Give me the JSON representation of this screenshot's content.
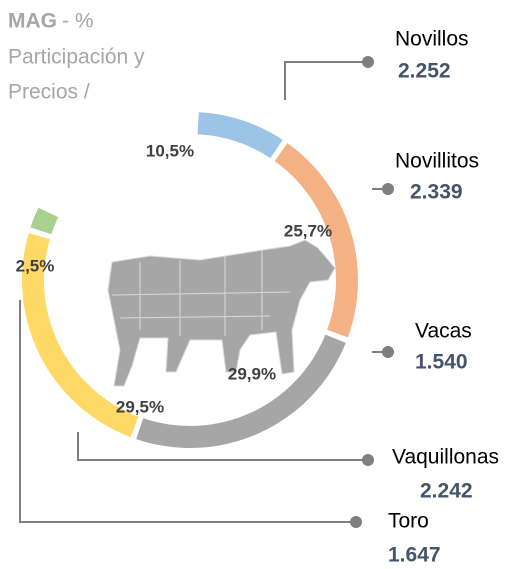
{
  "chart_data": {
    "type": "donut",
    "title": "MAG",
    "subtitle": [
      "- %",
      "Participación y",
      "Precios /"
    ],
    "categories": [
      "Novillos",
      "Novillitos",
      "Vacas",
      "Vaquillonas",
      "Toro"
    ],
    "values": [
      10.5,
      25.7,
      29.9,
      29.5,
      2.5
    ],
    "value_labels": [
      "10,5%",
      "25,7%",
      "29,9%",
      "29,5%",
      "2,5%"
    ],
    "colors": [
      "#9dc3e6",
      "#f4b183",
      "#a6a6a6",
      "#ffd966",
      "#a9d18e"
    ],
    "prices": [
      {
        "value": 2252,
        "label": "2.252"
      },
      {
        "value": 2339,
        "label": "2.339"
      },
      {
        "value": 1540,
        "label": "1.540"
      },
      {
        "value": 2242,
        "label": "2.242"
      },
      {
        "value": 1647,
        "label": "1.647"
      }
    ]
  }
}
